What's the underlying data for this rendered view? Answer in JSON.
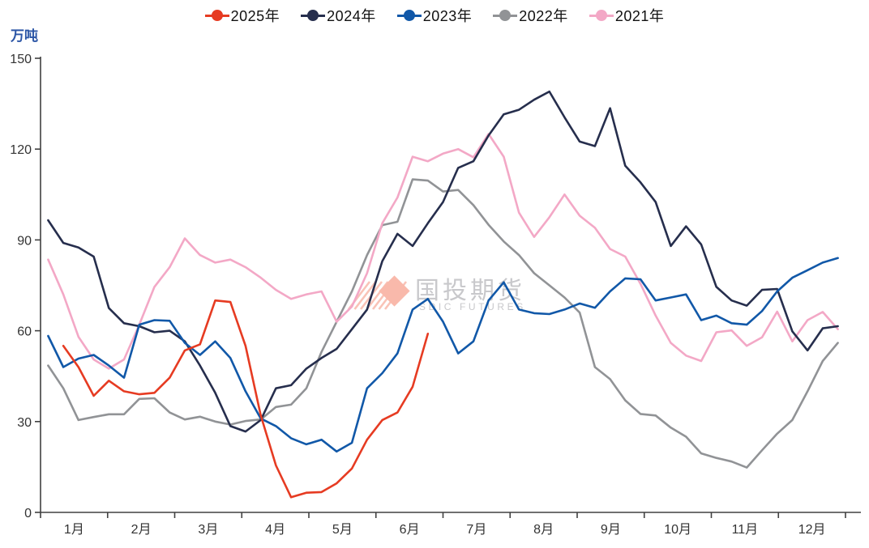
{
  "header": {
    "unit_label": "万吨"
  },
  "legend": [
    {
      "label": "2025年",
      "color": "#e63b22"
    },
    {
      "label": "2024年",
      "color": "#262e4d"
    },
    {
      "label": "2023年",
      "color": "#1158a8"
    },
    {
      "label": "2022年",
      "color": "#919396"
    },
    {
      "label": "2021年",
      "color": "#f3a8c6"
    }
  ],
  "watermark": {
    "cn": "国投期货",
    "en": "SDIC FUTURES",
    "diamond_color": "#f9b9ab",
    "text_color": "#c8c8cb"
  },
  "chart_data": {
    "type": "line",
    "title": "",
    "ylabel": "万吨",
    "ylim": [
      0,
      150
    ],
    "yticks": [
      0,
      30,
      60,
      90,
      120,
      150
    ],
    "x_months": [
      "1月",
      "2月",
      "3月",
      "4月",
      "5月",
      "6月",
      "7月",
      "8月",
      "9月",
      "10月",
      "11月",
      "12月"
    ],
    "points_per_year": 53,
    "legend_position": "top-center",
    "grid": false,
    "axis_color": "#404040",
    "tick_label_color": "#333333",
    "series": [
      {
        "name": "2022年",
        "color": "#919396",
        "values": [
          48.5,
          41,
          30.5,
          31.5,
          32.4,
          32.4,
          37.5,
          37.7,
          33,
          30.7,
          31.6,
          30,
          29,
          30.2,
          30.7,
          34.8,
          35.6,
          41,
          53,
          63,
          73,
          85,
          94.9,
          96,
          110,
          109.6,
          106,
          106.5,
          101.5,
          95,
          89.5,
          85,
          79,
          75,
          71,
          66,
          48,
          44,
          37,
          32.5,
          32,
          28,
          25,
          19.5,
          18,
          16.8,
          14.8,
          20.5,
          26,
          30.5,
          40,
          50,
          56
        ]
      },
      {
        "name": "2021年",
        "color": "#f3a8c6",
        "values": [
          83.5,
          72,
          58,
          50.5,
          47.5,
          50.5,
          62,
          74.5,
          81,
          90.5,
          85,
          82.5,
          83.5,
          81,
          77.5,
          73.5,
          70.5,
          72,
          73,
          63,
          68,
          79,
          95.5,
          104,
          117.5,
          116,
          118.5,
          120,
          117.3,
          125,
          117.5,
          99,
          91,
          97.5,
          105,
          98,
          94,
          87,
          84.5,
          75.5,
          65,
          56,
          51.8,
          50,
          59.5,
          60.1,
          55,
          57.8,
          66.3,
          56.5,
          63.5,
          66.2,
          60.5
        ]
      },
      {
        "name": "2024年",
        "color": "#262e4d",
        "values": [
          96.5,
          89,
          87.5,
          84.5,
          67.5,
          62.5,
          61.5,
          59.5,
          60,
          56.5,
          48.5,
          39.5,
          28.5,
          26.7,
          30.5,
          41,
          42,
          47.5,
          51,
          54,
          60.5,
          67,
          83,
          92,
          88,
          95.5,
          102.5,
          113.8,
          116,
          124.5,
          131.5,
          133,
          136.3,
          139,
          130.5,
          122.5,
          121,
          133.5,
          114.5,
          109,
          102.5,
          88,
          94.5,
          88.5,
          74.5,
          70,
          68.3,
          73.5,
          73.8,
          59.8,
          53.5,
          60.8,
          61.5
        ]
      },
      {
        "name": "2023年",
        "color": "#1158a8",
        "values": [
          58.3,
          48,
          50.8,
          52,
          48.5,
          44.5,
          62,
          63.5,
          63.3,
          56,
          52,
          56.5,
          51,
          40,
          31,
          28.5,
          24.5,
          22.5,
          24,
          20.1,
          23,
          41,
          46,
          52.5,
          67,
          70.5,
          63,
          52.5,
          56.5,
          70,
          76,
          67,
          65.8,
          65.5,
          67,
          69,
          67.6,
          73,
          77.3,
          77,
          70,
          71,
          72,
          63.5,
          65,
          62.5,
          62,
          66.5,
          73,
          77.5,
          80,
          82.5,
          84
        ]
      },
      {
        "name": "2025年",
        "color": "#e63b22",
        "values": [
          null,
          55,
          48,
          38.5,
          43.5,
          40,
          39,
          39.5,
          44.5,
          53.5,
          55.5,
          70,
          69.5,
          55,
          32,
          15.5,
          5,
          6.5,
          6.7,
          9.6,
          14.5,
          24,
          30.5,
          33,
          41.5,
          59,
          null,
          null,
          null,
          null,
          null,
          null,
          null,
          null,
          null,
          null,
          null,
          null,
          null,
          null,
          null,
          null,
          null,
          null,
          null,
          null,
          null,
          null,
          null,
          null,
          null,
          null,
          null
        ]
      }
    ]
  }
}
